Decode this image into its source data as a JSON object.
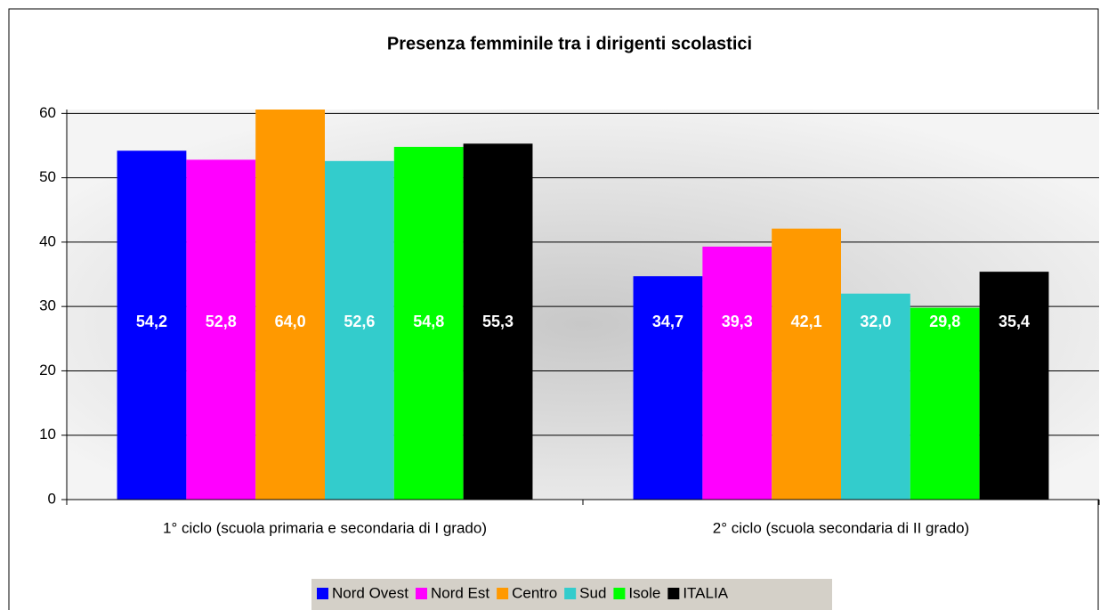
{
  "chart_data": {
    "type": "bar",
    "title": "Presenza femminile tra i dirigenti scolastici",
    "categories": [
      "1° ciclo (scuola primaria e secondaria di I grado)",
      "2° ciclo (scuola secondaria di II grado)"
    ],
    "series": [
      {
        "name": "Nord Ovest",
        "color": "#0000ff",
        "values": [
          54.2,
          34.7
        ],
        "value_labels": [
          "54,2",
          "34,7"
        ]
      },
      {
        "name": "Nord Est",
        "color": "#ff00ff",
        "values": [
          52.8,
          39.3
        ],
        "value_labels": [
          "52,8",
          "39,3"
        ]
      },
      {
        "name": "Centro",
        "color": "#ff9900",
        "values": [
          64.0,
          42.1
        ],
        "value_labels": [
          "64,0",
          "42,1"
        ]
      },
      {
        "name": "Sud",
        "color": "#33cccc",
        "values": [
          52.6,
          32.0
        ],
        "value_labels": [
          "52,6",
          "32,0"
        ]
      },
      {
        "name": "Isole",
        "color": "#00ff00",
        "values": [
          54.8,
          29.8
        ],
        "value_labels": [
          "54,8",
          "29,8"
        ]
      },
      {
        "name": "ITALIA",
        "color": "#000000",
        "values": [
          55.3,
          35.4
        ],
        "value_labels": [
          "55,3",
          "35,4"
        ]
      }
    ],
    "ylim": [
      0,
      60.6
    ],
    "yticks": [
      0,
      10,
      20,
      30,
      40,
      50,
      60
    ],
    "grid": true,
    "legend": "bottom"
  }
}
